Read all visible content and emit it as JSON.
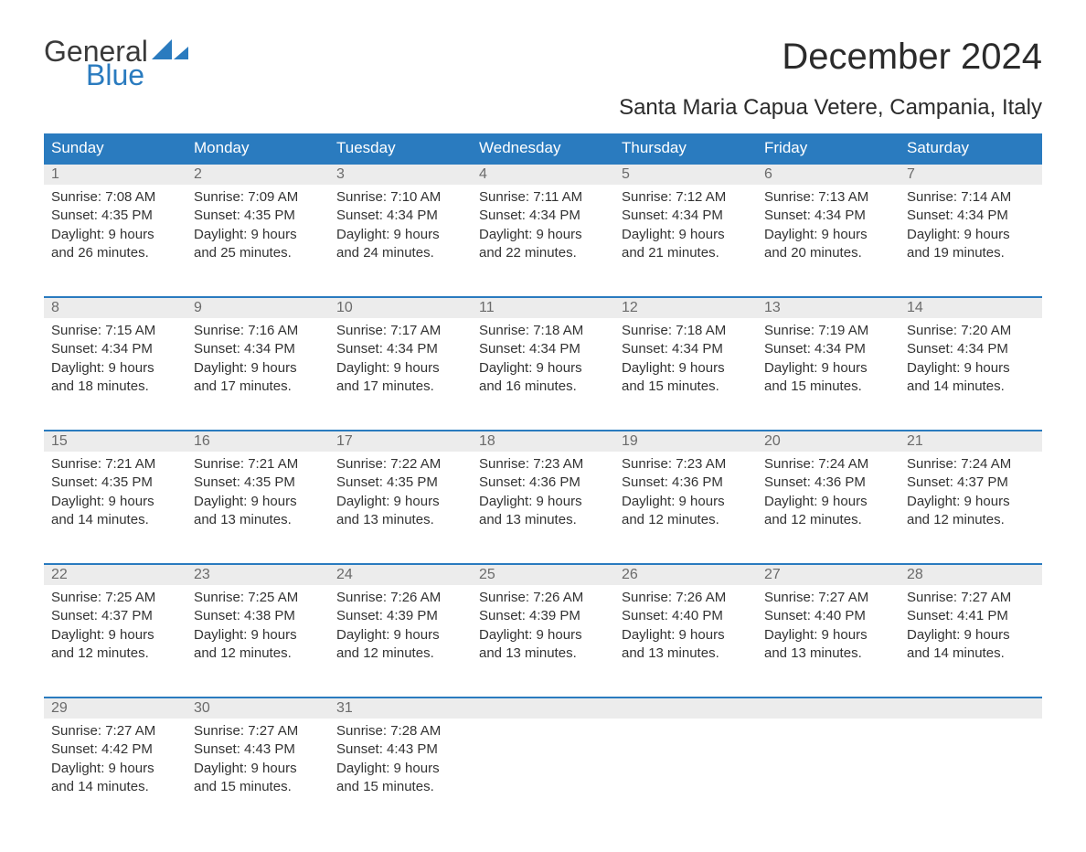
{
  "colors": {
    "brand_blue": "#2a7bbf",
    "header_bg": "#2a7bbf",
    "header_text": "#ffffff",
    "daynum_bg": "#ececec",
    "daynum_text": "#6b6b6b",
    "body_text": "#333333",
    "title_text": "#2b2b2b",
    "page_bg": "#ffffff"
  },
  "logo": {
    "word1": "General",
    "word2": "Blue"
  },
  "title": "December 2024",
  "location": "Santa Maria Capua Vetere, Campania, Italy",
  "day_headers": [
    "Sunday",
    "Monday",
    "Tuesday",
    "Wednesday",
    "Thursday",
    "Friday",
    "Saturday"
  ],
  "weeks": [
    [
      {
        "n": "1",
        "sunrise": "7:08 AM",
        "sunset": "4:35 PM",
        "dl1": "9 hours",
        "dl2": "and 26 minutes."
      },
      {
        "n": "2",
        "sunrise": "7:09 AM",
        "sunset": "4:35 PM",
        "dl1": "9 hours",
        "dl2": "and 25 minutes."
      },
      {
        "n": "3",
        "sunrise": "7:10 AM",
        "sunset": "4:34 PM",
        "dl1": "9 hours",
        "dl2": "and 24 minutes."
      },
      {
        "n": "4",
        "sunrise": "7:11 AM",
        "sunset": "4:34 PM",
        "dl1": "9 hours",
        "dl2": "and 22 minutes."
      },
      {
        "n": "5",
        "sunrise": "7:12 AM",
        "sunset": "4:34 PM",
        "dl1": "9 hours",
        "dl2": "and 21 minutes."
      },
      {
        "n": "6",
        "sunrise": "7:13 AM",
        "sunset": "4:34 PM",
        "dl1": "9 hours",
        "dl2": "and 20 minutes."
      },
      {
        "n": "7",
        "sunrise": "7:14 AM",
        "sunset": "4:34 PM",
        "dl1": "9 hours",
        "dl2": "and 19 minutes."
      }
    ],
    [
      {
        "n": "8",
        "sunrise": "7:15 AM",
        "sunset": "4:34 PM",
        "dl1": "9 hours",
        "dl2": "and 18 minutes."
      },
      {
        "n": "9",
        "sunrise": "7:16 AM",
        "sunset": "4:34 PM",
        "dl1": "9 hours",
        "dl2": "and 17 minutes."
      },
      {
        "n": "10",
        "sunrise": "7:17 AM",
        "sunset": "4:34 PM",
        "dl1": "9 hours",
        "dl2": "and 17 minutes."
      },
      {
        "n": "11",
        "sunrise": "7:18 AM",
        "sunset": "4:34 PM",
        "dl1": "9 hours",
        "dl2": "and 16 minutes."
      },
      {
        "n": "12",
        "sunrise": "7:18 AM",
        "sunset": "4:34 PM",
        "dl1": "9 hours",
        "dl2": "and 15 minutes."
      },
      {
        "n": "13",
        "sunrise": "7:19 AM",
        "sunset": "4:34 PM",
        "dl1": "9 hours",
        "dl2": "and 15 minutes."
      },
      {
        "n": "14",
        "sunrise": "7:20 AM",
        "sunset": "4:34 PM",
        "dl1": "9 hours",
        "dl2": "and 14 minutes."
      }
    ],
    [
      {
        "n": "15",
        "sunrise": "7:21 AM",
        "sunset": "4:35 PM",
        "dl1": "9 hours",
        "dl2": "and 14 minutes."
      },
      {
        "n": "16",
        "sunrise": "7:21 AM",
        "sunset": "4:35 PM",
        "dl1": "9 hours",
        "dl2": "and 13 minutes."
      },
      {
        "n": "17",
        "sunrise": "7:22 AM",
        "sunset": "4:35 PM",
        "dl1": "9 hours",
        "dl2": "and 13 minutes."
      },
      {
        "n": "18",
        "sunrise": "7:23 AM",
        "sunset": "4:36 PM",
        "dl1": "9 hours",
        "dl2": "and 13 minutes."
      },
      {
        "n": "19",
        "sunrise": "7:23 AM",
        "sunset": "4:36 PM",
        "dl1": "9 hours",
        "dl2": "and 12 minutes."
      },
      {
        "n": "20",
        "sunrise": "7:24 AM",
        "sunset": "4:36 PM",
        "dl1": "9 hours",
        "dl2": "and 12 minutes."
      },
      {
        "n": "21",
        "sunrise": "7:24 AM",
        "sunset": "4:37 PM",
        "dl1": "9 hours",
        "dl2": "and 12 minutes."
      }
    ],
    [
      {
        "n": "22",
        "sunrise": "7:25 AM",
        "sunset": "4:37 PM",
        "dl1": "9 hours",
        "dl2": "and 12 minutes."
      },
      {
        "n": "23",
        "sunrise": "7:25 AM",
        "sunset": "4:38 PM",
        "dl1": "9 hours",
        "dl2": "and 12 minutes."
      },
      {
        "n": "24",
        "sunrise": "7:26 AM",
        "sunset": "4:39 PM",
        "dl1": "9 hours",
        "dl2": "and 12 minutes."
      },
      {
        "n": "25",
        "sunrise": "7:26 AM",
        "sunset": "4:39 PM",
        "dl1": "9 hours",
        "dl2": "and 13 minutes."
      },
      {
        "n": "26",
        "sunrise": "7:26 AM",
        "sunset": "4:40 PM",
        "dl1": "9 hours",
        "dl2": "and 13 minutes."
      },
      {
        "n": "27",
        "sunrise": "7:27 AM",
        "sunset": "4:40 PM",
        "dl1": "9 hours",
        "dl2": "and 13 minutes."
      },
      {
        "n": "28",
        "sunrise": "7:27 AM",
        "sunset": "4:41 PM",
        "dl1": "9 hours",
        "dl2": "and 14 minutes."
      }
    ],
    [
      {
        "n": "29",
        "sunrise": "7:27 AM",
        "sunset": "4:42 PM",
        "dl1": "9 hours",
        "dl2": "and 14 minutes."
      },
      {
        "n": "30",
        "sunrise": "7:27 AM",
        "sunset": "4:43 PM",
        "dl1": "9 hours",
        "dl2": "and 15 minutes."
      },
      {
        "n": "31",
        "sunrise": "7:28 AM",
        "sunset": "4:43 PM",
        "dl1": "9 hours",
        "dl2": "and 15 minutes."
      },
      {
        "empty": true
      },
      {
        "empty": true
      },
      {
        "empty": true
      },
      {
        "empty": true
      }
    ]
  ],
  "labels": {
    "sunrise_prefix": "Sunrise: ",
    "sunset_prefix": "Sunset: ",
    "daylight_prefix": "Daylight: "
  }
}
